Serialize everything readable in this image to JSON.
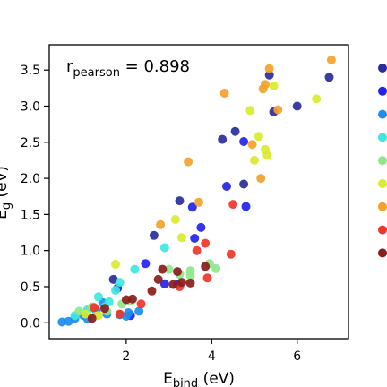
{
  "chart_data": {
    "type": "scatter",
    "xlabel": "E",
    "xlabel_sub": "bind",
    "xlabel_unit": " (eV)",
    "ylabel": "E",
    "ylabel_sub": "g",
    "ylabel_unit": " (eV)",
    "xlim": [
      0.2,
      7.2
    ],
    "ylim": [
      -0.22,
      3.85
    ],
    "xticks": [
      2,
      4,
      6
    ],
    "xtick_labels": [
      "2",
      "4",
      "6"
    ],
    "yticks": [
      0.0,
      0.5,
      1.0,
      1.5,
      2.0,
      2.5,
      3.0,
      3.5
    ],
    "ytick_labels": [
      "0.0",
      "0.5",
      "1.0",
      "1.5",
      "2.0",
      "2.5",
      "3.0",
      "3.5"
    ],
    "grid": false,
    "annotation": {
      "prefix": "r",
      "sub": "pearson",
      "suffix": " = 0.898"
    },
    "legend_position": "right",
    "series": [
      {
        "color": "#2b2c9a",
        "points": [
          [
            2.65,
            1.21
          ],
          [
            3.25,
            1.69
          ],
          [
            4.25,
            2.54
          ],
          [
            4.55,
            2.65
          ],
          [
            4.75,
            1.92
          ],
          [
            5.35,
            3.43
          ],
          [
            5.45,
            2.92
          ],
          [
            6.0,
            3.0
          ],
          [
            6.75,
            3.4
          ],
          [
            1.7,
            0.6
          ]
        ]
      },
      {
        "color": "#2323ee",
        "points": [
          [
            1.8,
            0.48
          ],
          [
            2.45,
            0.82
          ],
          [
            2.9,
            0.54
          ],
          [
            3.2,
            0.53
          ],
          [
            3.55,
            1.6
          ],
          [
            3.6,
            1.17
          ],
          [
            3.75,
            1.32
          ],
          [
            4.35,
            1.89
          ],
          [
            4.75,
            2.51
          ],
          [
            4.8,
            1.61
          ],
          [
            2.1,
            0.1
          ]
        ]
      },
      {
        "color": "#1a8ef0",
        "points": [
          [
            0.5,
            0.01
          ],
          [
            0.65,
            0.02
          ],
          [
            1.0,
            0.1
          ],
          [
            1.1,
            0.05
          ],
          [
            1.3,
            0.17
          ],
          [
            1.55,
            0.12
          ],
          [
            1.85,
            0.11
          ],
          [
            2.0,
            0.09
          ],
          [
            2.05,
            0.14
          ],
          [
            1.45,
            0.28
          ],
          [
            2.3,
            0.16
          ],
          [
            0.8,
            0.06
          ]
        ]
      },
      {
        "color": "#3ce8e0",
        "points": [
          [
            0.8,
            0.1
          ],
          [
            1.35,
            0.36
          ],
          [
            1.5,
            0.22
          ],
          [
            1.6,
            0.29
          ],
          [
            1.85,
            0.56
          ],
          [
            1.75,
            0.45
          ],
          [
            2.2,
            0.74
          ],
          [
            2.9,
            1.04
          ],
          [
            1.1,
            0.18
          ]
        ]
      },
      {
        "color": "#8ee88a",
        "points": [
          [
            0.9,
            0.16
          ],
          [
            1.2,
            0.22
          ],
          [
            1.55,
            0.16
          ],
          [
            1.9,
            0.26
          ],
          [
            2.1,
            0.3
          ],
          [
            3.0,
            0.74
          ],
          [
            3.25,
            0.67
          ],
          [
            3.5,
            0.65
          ],
          [
            3.5,
            0.72
          ],
          [
            3.95,
            0.82
          ],
          [
            4.1,
            0.75
          ],
          [
            1.3,
            0.1
          ]
        ]
      },
      {
        "color": "#d9ec2e",
        "points": [
          [
            1.05,
            0.12
          ],
          [
            1.35,
            0.1
          ],
          [
            1.75,
            0.81
          ],
          [
            3.15,
            1.43
          ],
          [
            3.3,
            1.18
          ],
          [
            4.9,
            2.94
          ],
          [
            5.0,
            2.25
          ],
          [
            5.1,
            2.58
          ],
          [
            5.25,
            2.4
          ],
          [
            5.3,
            2.32
          ],
          [
            5.45,
            3.28
          ],
          [
            6.45,
            3.1
          ]
        ]
      },
      {
        "color": "#f4a22a",
        "points": [
          [
            2.8,
            1.36
          ],
          [
            3.45,
            2.23
          ],
          [
            3.7,
            1.67
          ],
          [
            4.3,
            3.18
          ],
          [
            4.95,
            2.47
          ],
          [
            5.15,
            2.0
          ],
          [
            5.2,
            3.24
          ],
          [
            5.25,
            3.3
          ],
          [
            5.35,
            3.52
          ],
          [
            5.55,
            2.95
          ],
          [
            6.8,
            3.64
          ]
        ]
      },
      {
        "color": "#f0352a",
        "points": [
          [
            1.85,
            0.12
          ],
          [
            2.35,
            0.26
          ],
          [
            3.25,
            0.5
          ],
          [
            3.65,
            1.0
          ],
          [
            3.85,
            1.1
          ],
          [
            3.9,
            0.62
          ],
          [
            4.45,
            0.95
          ],
          [
            4.5,
            1.64
          ],
          [
            1.25,
            0.21
          ]
        ]
      },
      {
        "color": "#8b1c1c",
        "points": [
          [
            1.2,
            0.06
          ],
          [
            1.5,
            0.2
          ],
          [
            2.0,
            0.32
          ],
          [
            2.15,
            0.33
          ],
          [
            2.6,
            0.44
          ],
          [
            2.75,
            0.6
          ],
          [
            2.85,
            0.74
          ],
          [
            3.1,
            0.53
          ],
          [
            3.2,
            0.71
          ],
          [
            3.3,
            0.56
          ],
          [
            3.5,
            0.55
          ],
          [
            3.85,
            0.78
          ]
        ]
      }
    ]
  }
}
